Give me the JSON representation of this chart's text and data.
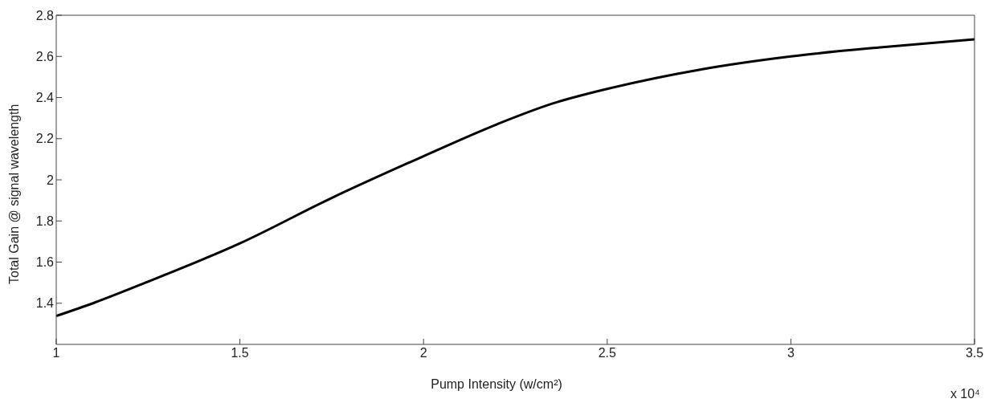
{
  "chart_data": {
    "type": "line",
    "xlabel": "Pump Intensity (w/cm²)",
    "ylabel": "Total Gain @ signal wavelength",
    "annotations": [
      "x 10⁴"
    ],
    "x": [
      1,
      1.1,
      1.25,
      1.5,
      1.75,
      2,
      2.2,
      2.35,
      2.5,
      2.75,
      3,
      3.25,
      3.5
    ],
    "series": [
      {
        "color": "#000000",
        "values": [
          1.338,
          1.4,
          1.505,
          1.691,
          1.912,
          2.115,
          2.27,
          2.37,
          2.442,
          2.535,
          2.6,
          2.645,
          2.683
        ]
      }
    ],
    "xlim": [
      1,
      3.5
    ],
    "xticks": [
      1,
      1.5,
      2,
      2.5,
      3,
      3.5
    ],
    "ylim": [
      1.2,
      2.8
    ],
    "yticks": [
      1.4,
      1.6,
      1.8,
      2,
      2.2,
      2.4,
      2.6,
      2.8
    ],
    "grid": false,
    "legend": false,
    "marker": "none",
    "line_style": "solid"
  }
}
